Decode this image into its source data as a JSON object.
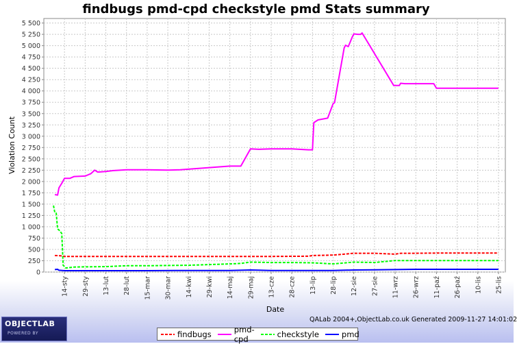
{
  "chart_data": {
    "type": "line",
    "title": "findbugs pmd-cpd checkstyle pmd  Stats summary",
    "xlabel": "Date",
    "ylabel": "Violation Count",
    "ylim": [
      0,
      5600
    ],
    "y_ticks": [
      0,
      250,
      500,
      750,
      1000,
      1250,
      1500,
      1750,
      2000,
      2250,
      2500,
      2750,
      3000,
      3250,
      3500,
      3750,
      4000,
      4250,
      4500,
      4750,
      5000,
      5250,
      5500
    ],
    "y_tick_labels": [
      "0",
      "250",
      "500",
      "750",
      "1 000",
      "1 250",
      "1 500",
      "1 750",
      "2 000",
      "2 250",
      "2 500",
      "2 750",
      "3 000",
      "3 250",
      "3 500",
      "3 750",
      "4 000",
      "4 250",
      "4 500",
      "4 750",
      "5 000",
      "5 250",
      "5 500"
    ],
    "x_range": [
      "2008-12-30",
      "2009-11-30"
    ],
    "x_ticks": [
      "2009-01-14",
      "2009-01-29",
      "2009-02-13",
      "2009-02-28",
      "2009-03-15",
      "2009-03-30",
      "2009-04-14",
      "2009-04-29",
      "2009-05-14",
      "2009-05-29",
      "2009-06-13",
      "2009-06-28",
      "2009-07-13",
      "2009-07-28",
      "2009-08-12",
      "2009-08-27",
      "2009-09-11",
      "2009-09-26",
      "2009-10-11",
      "2009-10-26",
      "2009-11-10",
      "2009-11-25"
    ],
    "x_tick_labels": [
      "14-sty",
      "29-sty",
      "13-lut",
      "28-lut",
      "15-mar",
      "30-mar",
      "14-kwi",
      "29-kwi",
      "14-maj",
      "29-maj",
      "13-cze",
      "28-cze",
      "13-lip",
      "28-lip",
      "12-sie",
      "27-sie",
      "11-wrz",
      "26-wrz",
      "11-paź",
      "26-paź",
      "10-lis",
      "25-lis"
    ],
    "grid": true,
    "legend_position": "bottom",
    "series": [
      {
        "name": "findbugs",
        "color": "#ff0000",
        "dash": "dashed",
        "x": [
          "2009-01-07",
          "2009-01-11",
          "2009-01-14",
          "2009-02-13",
          "2009-03-15",
          "2009-04-14",
          "2009-05-14",
          "2009-06-13",
          "2009-07-10",
          "2009-07-13",
          "2009-07-28",
          "2009-08-05",
          "2009-08-12",
          "2009-08-27",
          "2009-09-11",
          "2009-09-15",
          "2009-09-26",
          "2009-10-11",
          "2009-11-25"
        ],
        "y": [
          365,
          360,
          345,
          345,
          345,
          345,
          345,
          345,
          350,
          365,
          375,
          395,
          415,
          415,
          395,
          415,
          415,
          420,
          420
        ]
      },
      {
        "name": "pmd-cpd",
        "color": "#ff00ff",
        "dash": "solid",
        "x": [
          "2009-01-07",
          "2009-01-09",
          "2009-01-10",
          "2009-01-12",
          "2009-01-14",
          "2009-01-18",
          "2009-01-21",
          "2009-01-29",
          "2009-02-02",
          "2009-02-05",
          "2009-02-07",
          "2009-02-08",
          "2009-02-13",
          "2009-02-18",
          "2009-02-28",
          "2009-03-15",
          "2009-03-30",
          "2009-04-08",
          "2009-05-14",
          "2009-05-22",
          "2009-05-29",
          "2009-06-04",
          "2009-06-13",
          "2009-06-28",
          "2009-07-10",
          "2009-07-13",
          "2009-07-14",
          "2009-07-17",
          "2009-07-24",
          "2009-07-28",
          "2009-07-29",
          "2009-08-05",
          "2009-08-06",
          "2009-08-08",
          "2009-08-11",
          "2009-08-12",
          "2009-08-15",
          "2009-08-17",
          "2009-08-18",
          "2009-09-10",
          "2009-09-14",
          "2009-09-15",
          "2009-09-18",
          "2009-09-26",
          "2009-10-09",
          "2009-10-11",
          "2009-10-26",
          "2009-11-25"
        ],
        "y": [
          1710,
          1700,
          1860,
          1960,
          2070,
          2070,
          2110,
          2120,
          2170,
          2250,
          2210,
          2210,
          2220,
          2240,
          2260,
          2260,
          2250,
          2260,
          2340,
          2340,
          2720,
          2710,
          2720,
          2720,
          2700,
          2700,
          3300,
          3360,
          3400,
          3720,
          3740,
          4950,
          5010,
          4980,
          5200,
          5260,
          5250,
          5250,
          5280,
          4120,
          4120,
          4170,
          4160,
          4160,
          4160,
          4060,
          4060,
          4060
        ]
      },
      {
        "name": "checkstyle",
        "color": "#00ff00",
        "dash": "dashed",
        "x": [
          "2009-01-06",
          "2009-01-07",
          "2009-01-08",
          "2009-01-09",
          "2009-01-10",
          "2009-01-12",
          "2009-01-13",
          "2009-01-15",
          "2009-01-21",
          "2009-01-29",
          "2009-02-13",
          "2009-02-28",
          "2009-03-15",
          "2009-03-30",
          "2009-04-14",
          "2009-05-14",
          "2009-05-22",
          "2009-05-29",
          "2009-06-13",
          "2009-06-28",
          "2009-07-13",
          "2009-07-28",
          "2009-08-12",
          "2009-08-27",
          "2009-09-11",
          "2009-09-26",
          "2009-10-11",
          "2009-10-26",
          "2009-11-25"
        ],
        "y": [
          1470,
          1310,
          1300,
          950,
          930,
          850,
          150,
          90,
          110,
          115,
          120,
          140,
          140,
          145,
          150,
          180,
          190,
          220,
          210,
          210,
          205,
          180,
          220,
          210,
          255,
          255,
          255,
          255,
          255
        ]
      },
      {
        "name": "pmd",
        "color": "#0000ff",
        "dash": "solid",
        "x": [
          "2009-01-07",
          "2009-01-09",
          "2009-01-10",
          "2009-01-14",
          "2009-02-13",
          "2009-03-15",
          "2009-04-14",
          "2009-05-14",
          "2009-05-29",
          "2009-06-13",
          "2009-07-13",
          "2009-07-28",
          "2009-08-12",
          "2009-08-27",
          "2009-09-11",
          "2009-09-26",
          "2009-10-11",
          "2009-11-25"
        ],
        "y": [
          55,
          60,
          40,
          30,
          30,
          30,
          35,
          35,
          45,
          35,
          35,
          35,
          45,
          50,
          55,
          60,
          60,
          60
        ]
      }
    ]
  },
  "footer": {
    "credit": "QALab 2004+,ObjectLab.co.uk Generated 2009-11-27 14:01:02",
    "logo_main": "OBJECTLAB",
    "logo_sub": "POWERED BY"
  }
}
